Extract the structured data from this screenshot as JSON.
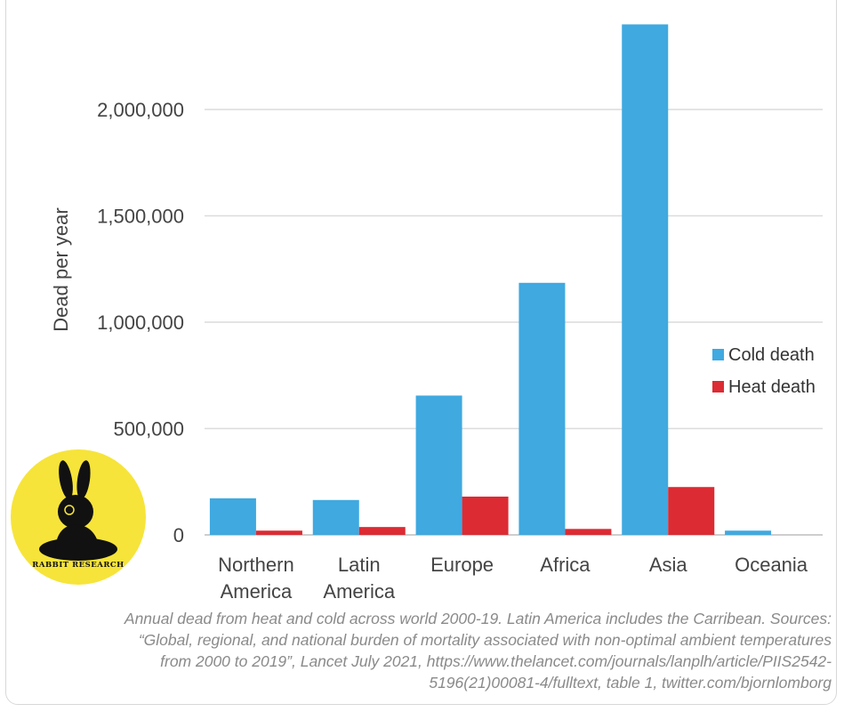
{
  "chart_data": {
    "type": "bar",
    "categories": [
      [
        "Northern",
        "America"
      ],
      [
        "Latin",
        "America"
      ],
      [
        "Europe"
      ],
      [
        "Africa"
      ],
      [
        "Asia"
      ],
      [
        "Oceania"
      ]
    ],
    "series": [
      {
        "name": "Cold death",
        "color": "#3fa9e0",
        "values": [
          172000,
          164000,
          655000,
          1185000,
          2400000,
          20000
        ]
      },
      {
        "name": "Heat death",
        "color": "#dc2b33",
        "values": [
          20000,
          37000,
          180000,
          28000,
          225000,
          0
        ]
      }
    ],
    "ylabel": "Dead per year",
    "yticks": [
      0,
      500000,
      1000000,
      1500000,
      2000000
    ],
    "ytick_labels": [
      "0",
      "500,000",
      "1,000,000",
      "1,500,000",
      "2,000,000"
    ],
    "ylim": [
      0,
      2450000
    ],
    "grid": true,
    "legend_position": "right"
  },
  "caption": [
    "Annual dead from heat and cold across world 2000-19. Latin America includes the Carribean. Sources:",
    "“Global, regional, and national burden of mortality associated with non-optimal ambient temperatures",
    "from 2000 to 2019”, Lancet July 2021, https://www.thelancet.com/journals/lanplh/article/PIIS2542-",
    "5196(21)00081-4/fulltext, table 1, twitter.com/bjornlomborg"
  ],
  "logo": {
    "text": "RABBIT RESEARCH",
    "bg_color": "#f6e43a"
  }
}
